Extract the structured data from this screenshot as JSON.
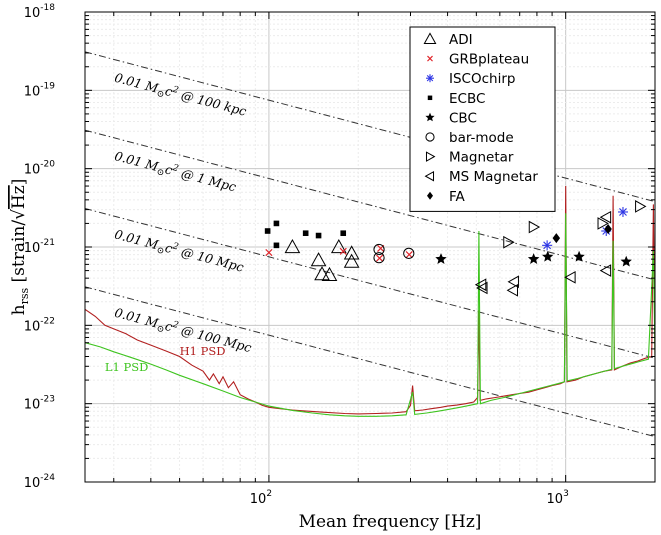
{
  "chart_data": {
    "type": "scatter",
    "xlabel": "Mean frequency [Hz]",
    "ylabel": {
      "main": "h",
      "sub": "rss",
      "bracket_open": "[strain/",
      "sqrt": "Hz",
      "bracket_close": "]"
    },
    "x_scale": "log",
    "y_scale": "log",
    "xlim": [
      24,
      2000
    ],
    "ylim": [
      1e-24,
      1e-18
    ],
    "grid": true,
    "legend_position": "top-right",
    "x_ticks": [
      {
        "value": 100,
        "base": "10",
        "exp": "2"
      },
      {
        "value": 1000,
        "base": "10",
        "exp": "3"
      }
    ],
    "y_ticks": [
      {
        "value": 1e-18,
        "base": "10",
        "exp": "-18"
      },
      {
        "value": 1e-19,
        "base": "10",
        "exp": "-19"
      },
      {
        "value": 1e-20,
        "base": "10",
        "exp": "-20"
      },
      {
        "value": 1e-21,
        "base": "10",
        "exp": "-21"
      },
      {
        "value": 1e-22,
        "base": "10",
        "exp": "-22"
      },
      {
        "value": 1e-23,
        "base": "10",
        "exp": "-23"
      },
      {
        "value": 1e-24,
        "base": "10",
        "exp": "-24"
      }
    ],
    "reference_lines": [
      {
        "label_parts": {
          "pre": "0.01 M",
          "sub": "⊙",
          "mid": "c",
          "sup": "2",
          "post": " @ 100 kpc"
        },
        "y_at_24Hz": 3.1e-19,
        "y_at_2000Hz": 3.8e-21,
        "label_x": 30,
        "label_y": 1.3e-19
      },
      {
        "label_parts": {
          "pre": "0.01 M",
          "sub": "⊙",
          "mid": "c",
          "sup": "2",
          "post": " @ 1 Mpc"
        },
        "y_at_24Hz": 3.1e-20,
        "y_at_2000Hz": 3.8e-22,
        "label_x": 30,
        "label_y": 1.3e-20
      },
      {
        "label_parts": {
          "pre": "0.01 M",
          "sub": "⊙",
          "mid": "c",
          "sup": "2",
          "post": " @ 10 Mpc"
        },
        "y_at_24Hz": 3.1e-21,
        "y_at_2000Hz": 3.8e-23,
        "label_x": 30,
        "label_y": 1.3e-21
      },
      {
        "label_parts": {
          "pre": "0.01 M",
          "sub": "⊙",
          "mid": "c",
          "sup": "2",
          "post": " @ 100 Mpc"
        },
        "y_at_24Hz": 3.1e-22,
        "y_at_2000Hz": 3.8e-24,
        "label_x": 30,
        "label_y": 1.3e-22
      }
    ],
    "psd_curves": [
      {
        "name": "H1 PSD",
        "color": "#b22020",
        "label_x": 50,
        "label_y": 4.2e-23,
        "points": [
          [
            24,
            1.6e-22
          ],
          [
            26,
            1.3e-22
          ],
          [
            28,
            1e-22
          ],
          [
            30,
            9e-23
          ],
          [
            33,
            7.8e-23
          ],
          [
            36,
            6.5e-23
          ],
          [
            40,
            5.6e-23
          ],
          [
            45,
            4.7e-23
          ],
          [
            50,
            4e-23
          ],
          [
            55,
            3.1e-23
          ],
          [
            60,
            2.6e-23
          ],
          [
            63,
            2e-23
          ],
          [
            65,
            2.4e-23
          ],
          [
            68,
            1.8e-23
          ],
          [
            70,
            2.2e-23
          ],
          [
            73,
            1.6e-23
          ],
          [
            76,
            1.9e-23
          ],
          [
            80,
            1.3e-23
          ],
          [
            85,
            1.15e-23
          ],
          [
            90,
            1.05e-23
          ],
          [
            95,
            9.5e-24
          ],
          [
            100,
            9e-24
          ],
          [
            110,
            8.6e-24
          ],
          [
            120,
            8.3e-24
          ],
          [
            130,
            8.1e-24
          ],
          [
            150,
            7.8e-24
          ],
          [
            180,
            7.5e-24
          ],
          [
            200,
            7.4e-24
          ],
          [
            230,
            7.5e-24
          ],
          [
            260,
            7.6e-24
          ],
          [
            290,
            7.9e-24
          ],
          [
            300,
            9.5e-24
          ],
          [
            305,
            1.7e-23
          ],
          [
            310,
            8.1e-24
          ],
          [
            330,
            8.3e-24
          ],
          [
            350,
            8.6e-24
          ],
          [
            380,
            9e-24
          ],
          [
            400,
            9.3e-24
          ],
          [
            430,
            9.6e-24
          ],
          [
            460,
            1e-23
          ],
          [
            490,
            1.05e-23
          ],
          [
            505,
            1.2e-23
          ],
          [
            510,
            1.55e-22
          ],
          [
            515,
            1.1e-23
          ],
          [
            540,
            1.15e-23
          ],
          [
            580,
            1.2e-23
          ],
          [
            620,
            1.25e-23
          ],
          [
            660,
            1.3e-23
          ],
          [
            700,
            1.35e-23
          ],
          [
            750,
            1.4e-23
          ],
          [
            800,
            1.5e-23
          ],
          [
            850,
            1.6e-23
          ],
          [
            900,
            1.7e-23
          ],
          [
            960,
            1.8e-23
          ],
          [
            990,
            1.9e-23
          ],
          [
            1000,
            6e-21
          ],
          [
            1010,
            1.9e-23
          ],
          [
            1080,
            2e-23
          ],
          [
            1150,
            2.2e-23
          ],
          [
            1250,
            2.4e-23
          ],
          [
            1350,
            2.6e-23
          ],
          [
            1430,
            2.7e-23
          ],
          [
            1445,
            4.5e-21
          ],
          [
            1460,
            2.7e-23
          ],
          [
            1550,
            3e-23
          ],
          [
            1650,
            3.3e-23
          ],
          [
            1750,
            3.5e-23
          ],
          [
            1850,
            3.8e-23
          ],
          [
            1950,
            4e-23
          ],
          [
            1975,
            3.5e-21
          ],
          [
            2000,
            4.1e-23
          ]
        ]
      },
      {
        "name": "L1 PSD",
        "color": "#3ec41f",
        "label_x": 28,
        "label_y": 2.6e-23,
        "points": [
          [
            24,
            6e-23
          ],
          [
            27,
            5.3e-23
          ],
          [
            30,
            4.6e-23
          ],
          [
            35,
            3.8e-23
          ],
          [
            40,
            3.2e-23
          ],
          [
            45,
            2.7e-23
          ],
          [
            50,
            2.3e-23
          ],
          [
            60,
            1.8e-23
          ],
          [
            70,
            1.45e-23
          ],
          [
            80,
            1.2e-23
          ],
          [
            90,
            1.05e-23
          ],
          [
            100,
            9.3e-24
          ],
          [
            120,
            8.2e-24
          ],
          [
            140,
            7.6e-24
          ],
          [
            160,
            7.2e-24
          ],
          [
            180,
            7e-24
          ],
          [
            200,
            6.9e-24
          ],
          [
            230,
            6.9e-24
          ],
          [
            260,
            7e-24
          ],
          [
            290,
            7.2e-24
          ],
          [
            305,
            1.4e-23
          ],
          [
            310,
            7.3e-24
          ],
          [
            340,
            7.6e-24
          ],
          [
            370,
            8e-24
          ],
          [
            400,
            8.4e-24
          ],
          [
            440,
            9e-24
          ],
          [
            480,
            9.6e-24
          ],
          [
            505,
            1e-23
          ],
          [
            510,
            1.6e-21
          ],
          [
            516,
            1e-23
          ],
          [
            560,
            1.1e-23
          ],
          [
            620,
            1.2e-23
          ],
          [
            700,
            1.35e-23
          ],
          [
            780,
            1.5e-23
          ],
          [
            860,
            1.65e-23
          ],
          [
            940,
            1.8e-23
          ],
          [
            990,
            1.9e-23
          ],
          [
            1000,
            2.7e-21
          ],
          [
            1012,
            1.95e-23
          ],
          [
            1100,
            2.1e-23
          ],
          [
            1200,
            2.3e-23
          ],
          [
            1300,
            2.5e-23
          ],
          [
            1430,
            2.75e-23
          ],
          [
            1445,
            1.2e-21
          ],
          [
            1460,
            2.8e-23
          ],
          [
            1600,
            3.1e-23
          ],
          [
            1750,
            3.4e-23
          ],
          [
            1900,
            3.7e-23
          ],
          [
            1975,
            9e-22
          ],
          [
            2000,
            3.9e-23
          ]
        ]
      }
    ],
    "series": [
      {
        "name": "ADI",
        "marker": "triangle-up",
        "color": "#000000",
        "points": [
          [
            120,
            1e-21
          ],
          [
            147,
            6.8e-22
          ],
          [
            151,
            4.5e-22
          ],
          [
            160,
            4.4e-22
          ],
          [
            172,
            1e-21
          ],
          [
            190,
            6.5e-22
          ],
          [
            190,
            8.3e-22
          ]
        ]
      },
      {
        "name": "GRBplateau",
        "marker": "x",
        "color": "#e0252b",
        "points": [
          [
            100,
            8.5e-22
          ],
          [
            178,
            8.8e-22
          ],
          [
            236,
            7.2e-22
          ],
          [
            238,
            9.6e-22
          ],
          [
            297,
            8e-22
          ]
        ]
      },
      {
        "name": "ISCOchirp",
        "marker": "asterisk",
        "color": "#2f37e6",
        "points": [
          [
            866,
            1.05e-21
          ],
          [
            1370,
            1.6e-21
          ],
          [
            1560,
            2.8e-21
          ]
        ]
      },
      {
        "name": "ECBC",
        "marker": "square",
        "color": "#000000",
        "points": [
          [
            99,
            1.6e-21
          ],
          [
            106,
            2e-21
          ],
          [
            106,
            1.05e-21
          ],
          [
            133,
            1.5e-21
          ],
          [
            147,
            1.4e-21
          ],
          [
            178,
            1.5e-21
          ]
        ]
      },
      {
        "name": "CBC",
        "marker": "star",
        "color": "#000000",
        "points": [
          [
            380,
            7e-22
          ],
          [
            780,
            7e-22
          ],
          [
            870,
            7.5e-22
          ],
          [
            1110,
            7.5e-22
          ],
          [
            1600,
            6.5e-22
          ]
        ]
      },
      {
        "name": "bar-mode",
        "marker": "circle",
        "color": "#000000",
        "points": [
          [
            235,
            7.3e-22
          ],
          [
            235,
            9.3e-22
          ],
          [
            296,
            8.3e-22
          ]
        ]
      },
      {
        "name": "Magnetar",
        "marker": "triangle-right",
        "color": "#000000",
        "points": [
          [
            640,
            1.15e-21
          ],
          [
            780,
            1.8e-21
          ],
          [
            1330,
            2e-21
          ],
          [
            1780,
            3.3e-21
          ]
        ]
      },
      {
        "name": "MS Magnetar",
        "marker": "triangle-left",
        "color": "#000000",
        "points": [
          [
            520,
            3.3e-22
          ],
          [
            525,
            3e-22
          ],
          [
            665,
            2.8e-22
          ],
          [
            670,
            3.6e-22
          ],
          [
            1040,
            4.1e-22
          ],
          [
            1370,
            5e-22
          ],
          [
            1370,
            2.4e-21
          ]
        ]
      },
      {
        "name": "FA",
        "marker": "diamond",
        "color": "#000000",
        "points": [
          [
            930,
            1.3e-21
          ],
          [
            1390,
            1.7e-21
          ]
        ]
      }
    ]
  }
}
